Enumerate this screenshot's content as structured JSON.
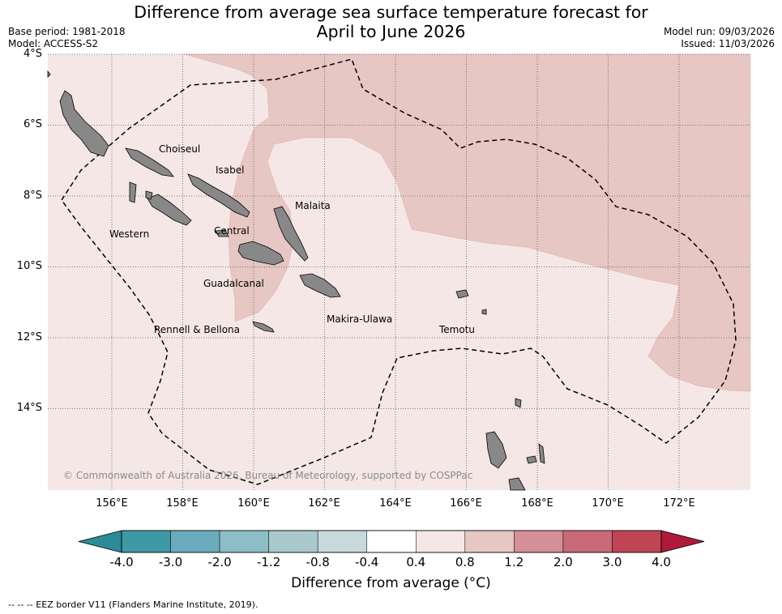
{
  "title_line1": "Difference from average sea surface temperature forecast for",
  "title_line2": "April to June 2026",
  "meta": {
    "base_period": "Base period: 1981-2018",
    "model": "Model: ACCESS-S2",
    "model_run": "Model run: 09/03/2026",
    "issued": "Issued: 11/03/2026"
  },
  "axes": {
    "lat_labels": [
      "4°S",
      "6°S",
      "8°S",
      "10°S",
      "12°S",
      "14°S"
    ],
    "lon_labels": [
      "156°E",
      "158°E",
      "160°E",
      "162°E",
      "164°E",
      "166°E",
      "168°E",
      "170°E",
      "172°E"
    ]
  },
  "places": {
    "choiseul": "Choiseul",
    "isabel": "Isabel",
    "malaita": "Malaita",
    "western": "Western",
    "central": "Central",
    "guadalcanal": "Guadalcanal",
    "makira": "Makira-Ulawa",
    "rennell": "Rennell & Bellona",
    "temotu": "Temotu"
  },
  "copyright": "© Commonwealth of Australia 2026, Bureau of Meteorology, supported by COSPPac",
  "colorbar": {
    "ticks": [
      "-4.0",
      "-3.0",
      "-2.0",
      "-1.2",
      "-0.8",
      "-0.4",
      "0.4",
      "0.8",
      "1.2",
      "2.0",
      "3.0",
      "4.0"
    ],
    "colors": [
      "#3f98a6",
      "#6aacbb",
      "#8dbec7",
      "#a9c9cc",
      "#c8d9dc",
      "#ffffff",
      "#f5e7e6",
      "#e7c7c3",
      "#d58f98",
      "#c86a77",
      "#bf4555"
    ],
    "under_color": "#2d8a98",
    "over_color": "#b01a3a",
    "label": "Difference from average (°C)"
  },
  "legend_footer": "--  --  -- EEZ border V11 (Flanders Marine Institute, 2019)."
}
